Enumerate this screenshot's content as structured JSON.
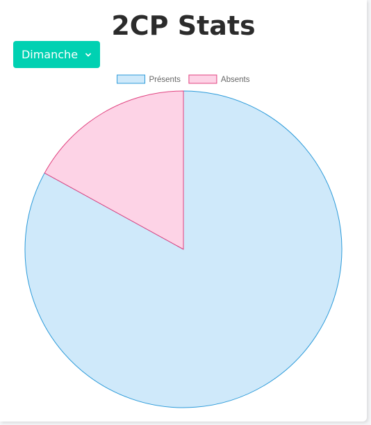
{
  "page": {
    "title": "2CP Stats"
  },
  "day_selector": {
    "selected": "Dimanche",
    "icon": "chevron-down-icon",
    "color": "#00d1b2"
  },
  "chart_data": {
    "type": "pie",
    "title": "",
    "labels": [
      "Présents",
      "Absents"
    ],
    "values": [
      83,
      17
    ],
    "colors": {
      "fill": [
        "#cfe9fa",
        "#fdd3e6"
      ],
      "stroke": [
        "#2b9ad9",
        "#e0417f"
      ]
    },
    "legend_position": "top",
    "start_angle_deg": -90
  }
}
